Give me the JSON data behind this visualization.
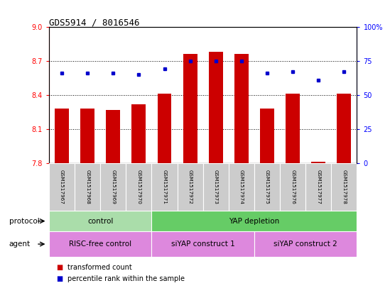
{
  "title": "GDS5914 / 8016546",
  "samples": [
    "GSM1517967",
    "GSM1517968",
    "GSM1517969",
    "GSM1517970",
    "GSM1517971",
    "GSM1517972",
    "GSM1517973",
    "GSM1517974",
    "GSM1517975",
    "GSM1517976",
    "GSM1517977",
    "GSM1517978"
  ],
  "bar_values": [
    8.28,
    8.28,
    8.27,
    8.32,
    8.41,
    8.76,
    8.78,
    8.76,
    8.28,
    8.41,
    7.81,
    8.41
  ],
  "percentile_values": [
    66,
    66,
    66,
    65,
    69,
    75,
    75,
    75,
    66,
    67,
    61,
    67
  ],
  "ylim_left": [
    7.8,
    9.0
  ],
  "ylim_right": [
    0,
    100
  ],
  "yticks_left": [
    7.8,
    8.1,
    8.4,
    8.7,
    9.0
  ],
  "yticks_right": [
    0,
    25,
    50,
    75,
    100
  ],
  "bar_color": "#cc0000",
  "dot_color": "#0000cc",
  "bar_bottom": 7.8,
  "bar_width": 0.55,
  "protocol_row": [
    {
      "label": "control",
      "start": 0,
      "end": 4,
      "color": "#aaddaa"
    },
    {
      "label": "YAP depletion",
      "start": 4,
      "end": 12,
      "color": "#66cc66"
    }
  ],
  "agent_row": [
    {
      "label": "RISC-free control",
      "start": 0,
      "end": 4,
      "color": "#dd88dd"
    },
    {
      "label": "siYAP construct 1",
      "start": 4,
      "end": 8,
      "color": "#dd88dd"
    },
    {
      "label": "siYAP construct 2",
      "start": 8,
      "end": 12,
      "color": "#dd88dd"
    }
  ],
  "legend_items": [
    {
      "label": "transformed count",
      "color": "#cc0000"
    },
    {
      "label": "percentile rank within the sample",
      "color": "#0000cc"
    }
  ],
  "sample_bg_color": "#cccccc",
  "right_ytick_labels": [
    "0",
    "25",
    "50",
    "75",
    "100%"
  ]
}
